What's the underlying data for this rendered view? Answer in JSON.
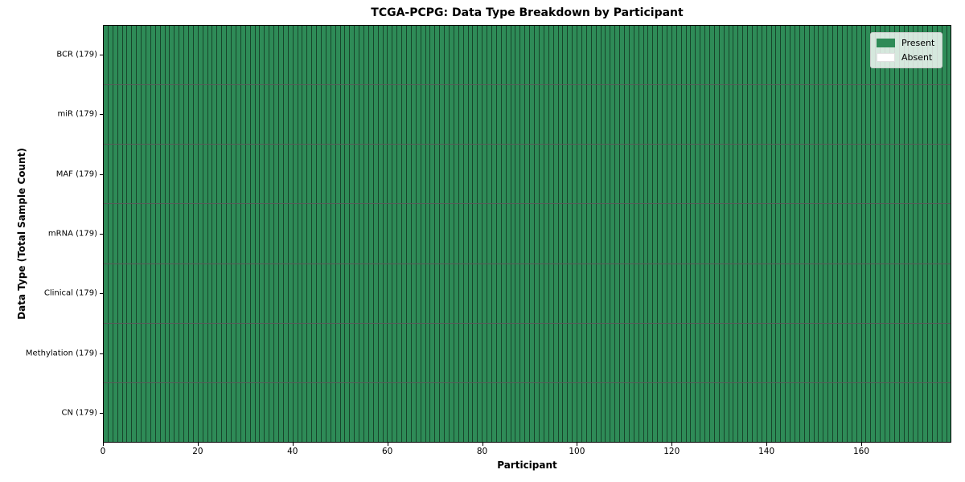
{
  "title": "TCGA-PCPG: Data Type Breakdown by Participant",
  "chart_data": {
    "type": "heatmap",
    "title": "TCGA-PCPG: Data Type Breakdown by Participant",
    "xlabel": "Participant",
    "ylabel": "Data Type (Total Sample Count)",
    "xlim": [
      0,
      179
    ],
    "x_ticks": [
      0,
      20,
      40,
      60,
      80,
      100,
      120,
      140,
      160
    ],
    "participants_total": 179,
    "grid": "cell-borders",
    "rows": [
      {
        "label": "BCR (179)",
        "data_type": "BCR",
        "total_samples": 179,
        "present_count": 179,
        "absent_count": 0
      },
      {
        "label": "miR (179)",
        "data_type": "miR",
        "total_samples": 179,
        "present_count": 179,
        "absent_count": 0
      },
      {
        "label": "MAF (179)",
        "data_type": "MAF",
        "total_samples": 179,
        "present_count": 179,
        "absent_count": 0
      },
      {
        "label": "mRNA (179)",
        "data_type": "mRNA",
        "total_samples": 179,
        "present_count": 179,
        "absent_count": 0
      },
      {
        "label": "Clinical (179)",
        "data_type": "Clinical",
        "total_samples": 179,
        "present_count": 179,
        "absent_count": 0
      },
      {
        "label": "Methylation (179)",
        "data_type": "Methylation",
        "total_samples": 179,
        "present_count": 179,
        "absent_count": 0
      },
      {
        "label": "CN (179)",
        "data_type": "CN",
        "total_samples": 179,
        "present_count": 179,
        "absent_count": 0
      }
    ],
    "legend": {
      "position": "upper-right",
      "entries": [
        {
          "label": "Present",
          "color": "#2e8b57"
        },
        {
          "label": "Absent",
          "color": "#ffffff"
        }
      ]
    },
    "colors": {
      "present": "#2e8b57",
      "absent": "#ffffff",
      "cell_border": "rgba(0,0,0,0.50)",
      "row_border": "rgba(0,0,0,0.65)",
      "axis": "#000000"
    }
  }
}
